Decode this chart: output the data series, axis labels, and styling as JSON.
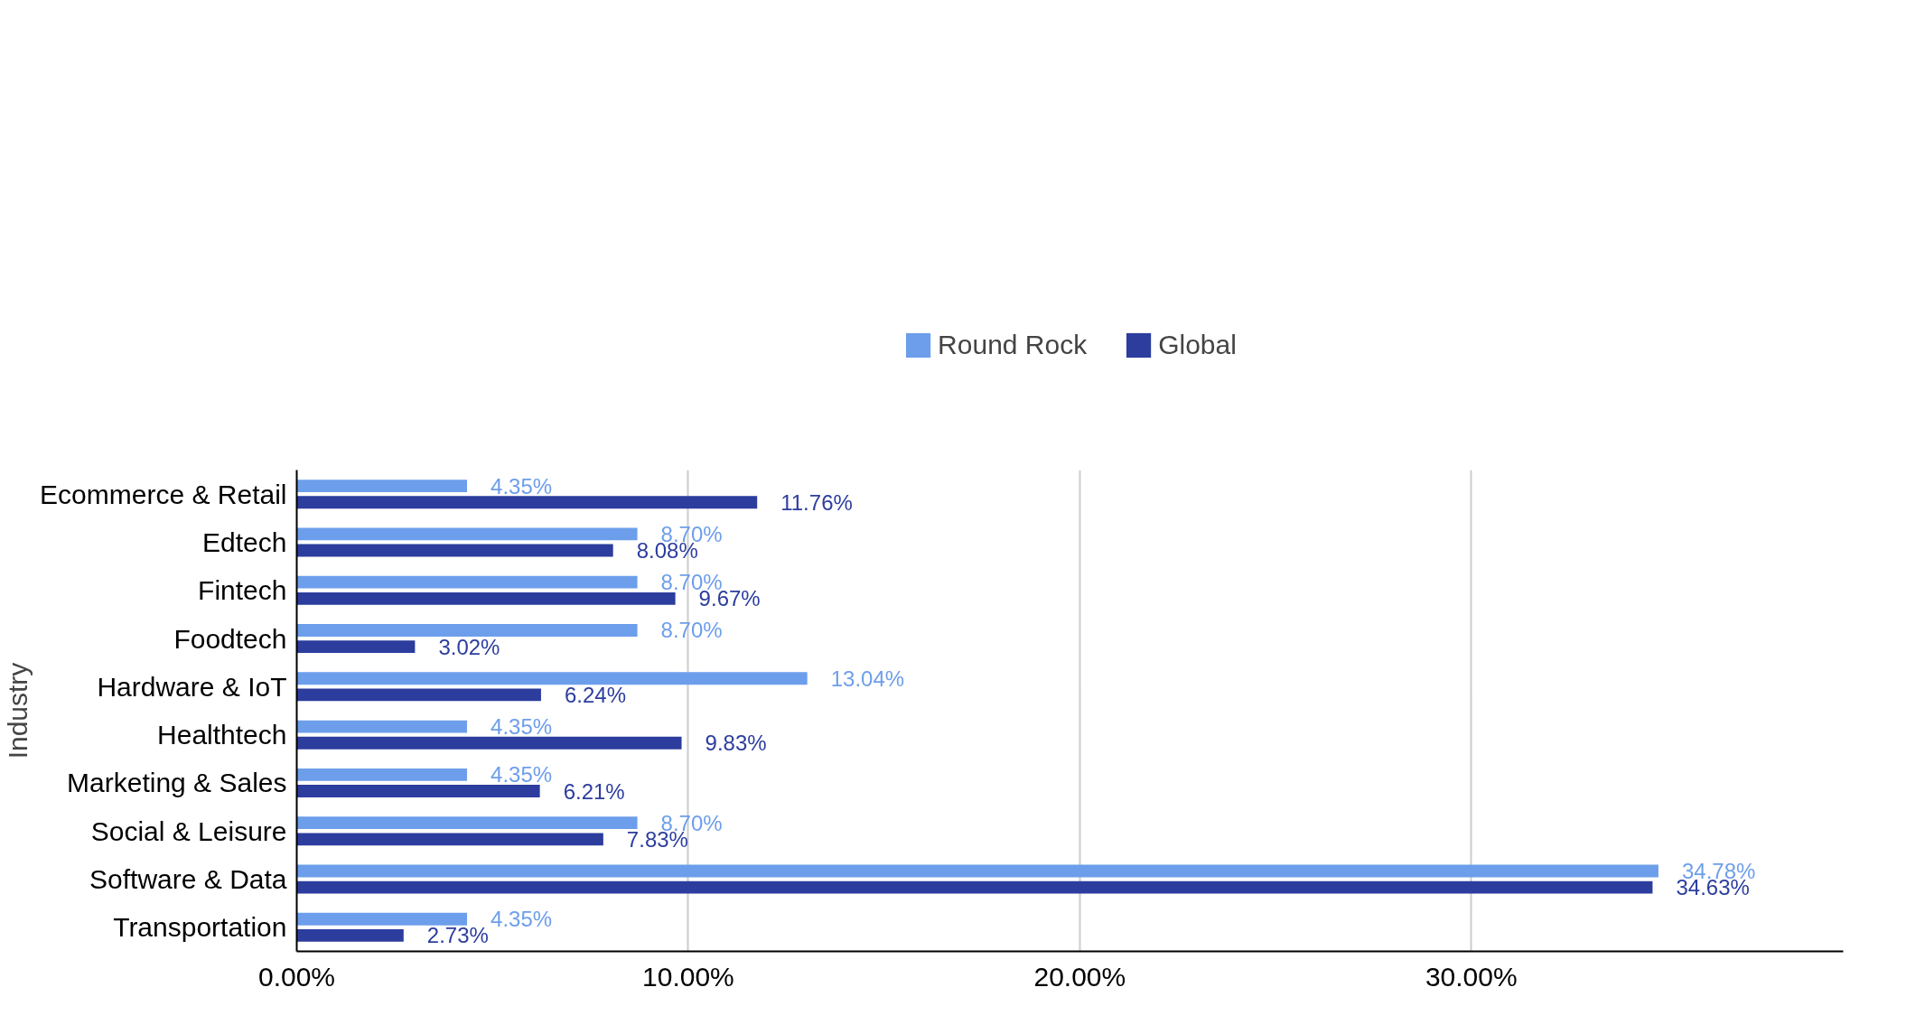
{
  "chart_data": {
    "type": "bar",
    "orientation": "horizontal",
    "ylabel": "Industry",
    "categories": [
      "Ecommerce & Retail",
      "Edtech",
      "Fintech",
      "Foodtech",
      "Hardware & IoT",
      "Healthtech",
      "Marketing & Sales",
      "Social & Leisure",
      "Software & Data",
      "Transportation"
    ],
    "series": [
      {
        "name": "Round Rock",
        "color": "#6d9eeb",
        "values": [
          4.35,
          8.7,
          8.7,
          8.7,
          13.04,
          4.35,
          4.35,
          8.7,
          34.78,
          4.35
        ],
        "value_labels": [
          "4.35%",
          "8.70%",
          "8.70%",
          "8.70%",
          "13.04%",
          "4.35%",
          "4.35%",
          "8.70%",
          "34.78%",
          "4.35%"
        ]
      },
      {
        "name": "Global",
        "color": "#2c3d9e",
        "values": [
          11.76,
          8.08,
          9.67,
          3.02,
          6.24,
          9.83,
          6.21,
          7.83,
          34.63,
          2.73
        ],
        "value_labels": [
          "11.76%",
          "8.08%",
          "9.67%",
          "3.02%",
          "6.24%",
          "9.83%",
          "6.21%",
          "7.83%",
          "34.63%",
          "2.73%"
        ]
      }
    ],
    "xlim": [
      0,
      39.5
    ],
    "xticks": [
      {
        "value": 0,
        "label": "0.00%"
      },
      {
        "value": 10,
        "label": "10.00%"
      },
      {
        "value": 20,
        "label": "20.00%"
      },
      {
        "value": 30,
        "label": "30.00%"
      }
    ],
    "grid": "x",
    "legend": "top"
  }
}
